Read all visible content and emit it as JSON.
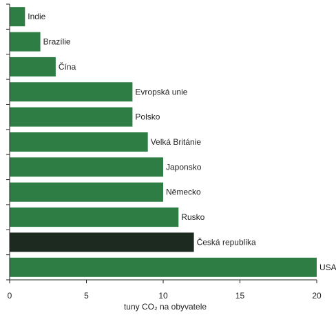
{
  "chart_data": {
    "type": "bar",
    "orientation": "horizontal",
    "categories": [
      "Indie",
      "Brazílie",
      "Čína",
      "Evropská unie",
      "Polsko",
      "Velká Británie",
      "Japonsko",
      "Německo",
      "Rusko",
      "Česká republika",
      "USA"
    ],
    "values": [
      1,
      2,
      3,
      8,
      8,
      9,
      10,
      10,
      11,
      12,
      20
    ],
    "highlight_category": "Česká republika",
    "xlabel": "tuny CO₂ na obyvatele",
    "xlim": [
      0,
      20
    ],
    "xticks": [
      "0",
      "5",
      "10",
      "15",
      "20"
    ],
    "grid": false,
    "colors": {
      "bar": "#2e7d45",
      "highlight": "#1c2a20",
      "axis": "#222222"
    }
  }
}
